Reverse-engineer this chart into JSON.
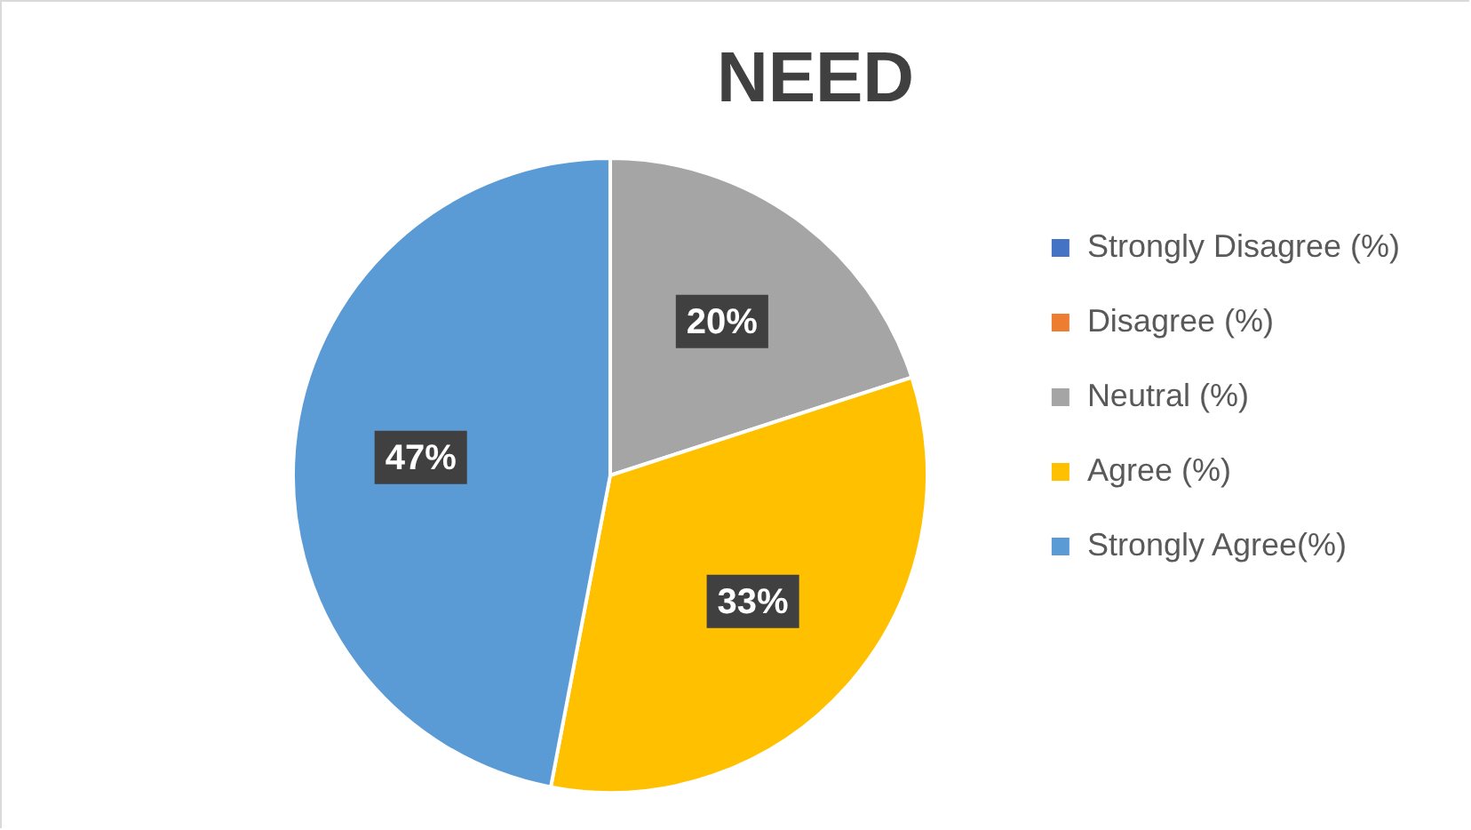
{
  "chart_data": {
    "type": "pie",
    "title": "NEED",
    "categories": [
      "Strongly Disagree (%)",
      "Disagree (%)",
      "Neutral (%)",
      "Agree (%)",
      "Strongly Agree(%)"
    ],
    "values": [
      0,
      0,
      20,
      33,
      47
    ],
    "colors": [
      "#4472c4",
      "#ed7d31",
      "#a5a5a5",
      "#ffc000",
      "#5b9bd5"
    ],
    "value_labels": [
      null,
      null,
      "20%",
      "33%",
      "47%"
    ],
    "legend": "right"
  }
}
